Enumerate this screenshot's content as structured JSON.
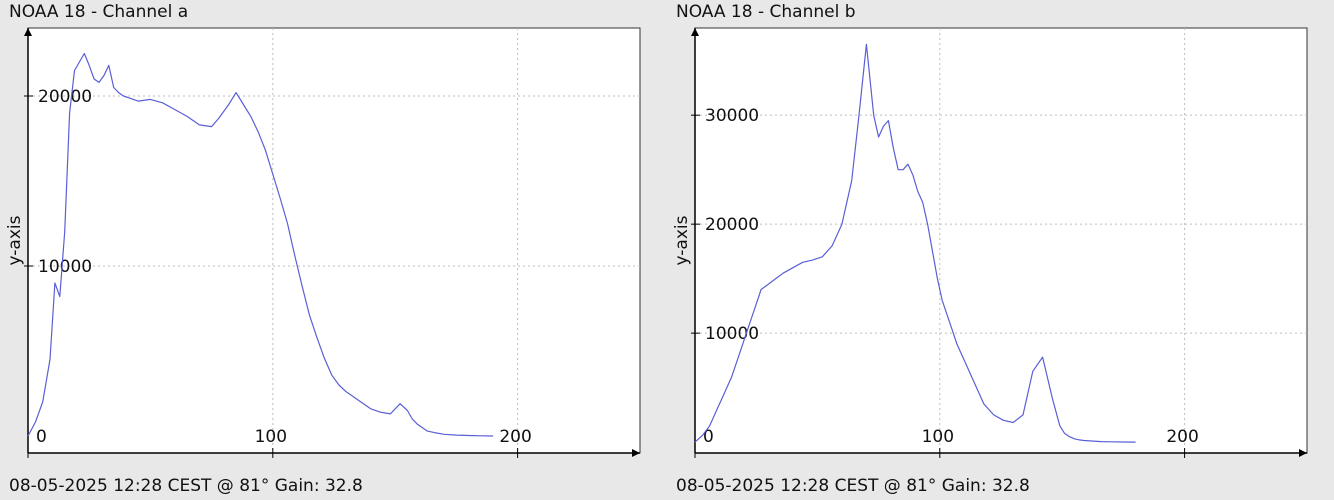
{
  "colors": {
    "plot_bg": "#ffffff",
    "page_bg": "#e8e8e8",
    "line": "#5b5fd6",
    "grid": "#bdbdbd",
    "axis": "#000000"
  },
  "chart_data": [
    {
      "type": "line",
      "title": "NOAA 18 - Channel a",
      "footer": "08-05-2025 12:28 CEST @ 81° Gain: 32.8",
      "ylabel": "y-axis",
      "xlim": [
        0,
        250
      ],
      "ylim": [
        -1000,
        24000
      ],
      "xticks": [
        0,
        100,
        200
      ],
      "yticks": [
        10000,
        20000
      ],
      "grid": true,
      "x": [
        0,
        3,
        6,
        9,
        11,
        13,
        15,
        17,
        19,
        21,
        23,
        25,
        27,
        29,
        31,
        33,
        35,
        37,
        39,
        41,
        43,
        45,
        50,
        55,
        60,
        65,
        70,
        75,
        78,
        82,
        85,
        88,
        91,
        94,
        97,
        100,
        103,
        106,
        109,
        112,
        115,
        118,
        121,
        124,
        127,
        130,
        133,
        136,
        140,
        144,
        148,
        152,
        155,
        157,
        159,
        161,
        163,
        166,
        170,
        175,
        180,
        185,
        190
      ],
      "values": [
        0,
        800,
        2000,
        4500,
        9000,
        8200,
        12000,
        19000,
        21500,
        22000,
        22500,
        21800,
        21000,
        20800,
        21200,
        21800,
        20500,
        20200,
        20000,
        19900,
        19800,
        19700,
        19800,
        19600,
        19200,
        18800,
        18300,
        18200,
        18700,
        19500,
        20200,
        19500,
        18800,
        17900,
        16800,
        15400,
        14000,
        12500,
        10600,
        8800,
        7100,
        5800,
        4600,
        3600,
        3000,
        2600,
        2300,
        2000,
        1600,
        1400,
        1300,
        1900,
        1500,
        1000,
        700,
        500,
        300,
        200,
        100,
        50,
        30,
        10,
        0
      ]
    },
    {
      "type": "line",
      "title": "NOAA 18 - Channel b",
      "footer": "08-05-2025 12:28 CEST @ 81° Gain: 32.8",
      "ylabel": "y-axis",
      "xlim": [
        0,
        250
      ],
      "ylim": [
        -1000,
        38000
      ],
      "xticks": [
        0,
        100,
        200
      ],
      "yticks": [
        10000,
        20000,
        30000
      ],
      "grid": true,
      "x": [
        0,
        3,
        6,
        9,
        12,
        15,
        18,
        21,
        24,
        27,
        30,
        33,
        36,
        40,
        44,
        48,
        52,
        56,
        60,
        64,
        67,
        70,
        73,
        75,
        77,
        79,
        81,
        83,
        85,
        87,
        89,
        91,
        93,
        95,
        97,
        99,
        101,
        104,
        107,
        110,
        114,
        118,
        122,
        126,
        130,
        134,
        138,
        142,
        146,
        149,
        151,
        153,
        155,
        157,
        159,
        162,
        166,
        170,
        175,
        180
      ],
      "values": [
        0,
        600,
        1500,
        3000,
        4500,
        6000,
        8000,
        10000,
        12000,
        14000,
        14500,
        15000,
        15500,
        16000,
        16500,
        16700,
        17000,
        18000,
        20000,
        24000,
        30000,
        36500,
        30000,
        28000,
        29000,
        29500,
        27000,
        25000,
        25000,
        25500,
        24500,
        23000,
        22000,
        20000,
        17500,
        15000,
        13000,
        11000,
        9000,
        7500,
        5500,
        3500,
        2500,
        2000,
        1800,
        2500,
        6500,
        7800,
        4000,
        1500,
        800,
        500,
        300,
        200,
        150,
        100,
        50,
        30,
        10,
        0
      ]
    }
  ]
}
